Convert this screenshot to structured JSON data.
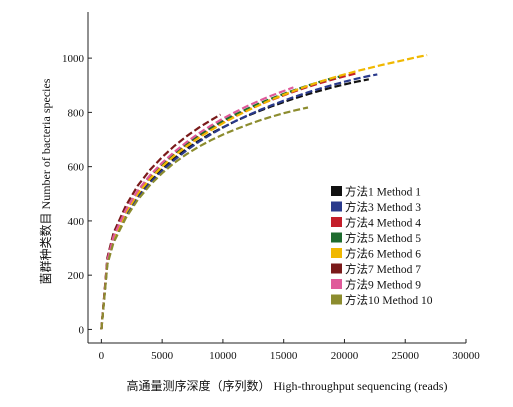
{
  "chart_data": {
    "type": "line",
    "title": "",
    "xlabel": "高通量测序深度（序列数） High-throughput sequencing (reads)",
    "ylabel": "菌群种类数目 Number of bacteria species",
    "xlim": [
      -1100,
      30000
    ],
    "ylim": [
      -50,
      1170
    ],
    "xticks": [
      0,
      5000,
      10000,
      15000,
      20000,
      25000,
      30000
    ],
    "yticks": [
      0,
      200,
      400,
      600,
      800,
      1000
    ],
    "grid": false,
    "legend_position": "right",
    "line_style": "dashed",
    "series": [
      {
        "name": "方法1 Method 1",
        "color": "#111111",
        "points": [
          [
            0,
            0
          ],
          [
            500,
            250
          ],
          [
            1000,
            330
          ],
          [
            2000,
            420
          ],
          [
            3000,
            490
          ],
          [
            4000,
            545
          ],
          [
            5000,
            590
          ],
          [
            6000,
            630
          ],
          [
            7000,
            665
          ],
          [
            8000,
            695
          ],
          [
            9000,
            722
          ],
          [
            10000,
            745
          ],
          [
            11000,
            767
          ],
          [
            12000,
            787
          ],
          [
            13000,
            805
          ],
          [
            14000,
            822
          ],
          [
            15000,
            838
          ],
          [
            16000,
            853
          ],
          [
            17000,
            867
          ],
          [
            18000,
            880
          ],
          [
            19000,
            892
          ],
          [
            20000,
            903
          ],
          [
            21000,
            913
          ],
          [
            22000,
            922
          ]
        ]
      },
      {
        "name": "方法3 Method 3",
        "color": "#2a3a8c",
        "points": [
          [
            0,
            0
          ],
          [
            500,
            245
          ],
          [
            1000,
            325
          ],
          [
            2000,
            415
          ],
          [
            3000,
            485
          ],
          [
            4000,
            540
          ],
          [
            5000,
            585
          ],
          [
            6000,
            625
          ],
          [
            7000,
            660
          ],
          [
            8000,
            691
          ],
          [
            9000,
            719
          ],
          [
            10000,
            744
          ],
          [
            11000,
            767
          ],
          [
            12000,
            788
          ],
          [
            13000,
            808
          ],
          [
            14000,
            826
          ],
          [
            15000,
            843
          ],
          [
            16000,
            859
          ],
          [
            17000,
            874
          ],
          [
            18000,
            888
          ],
          [
            19000,
            901
          ],
          [
            20000,
            913
          ],
          [
            21000,
            924
          ],
          [
            22000,
            934
          ],
          [
            22700,
            940
          ]
        ]
      },
      {
        "name": "方法4 Method 4",
        "color": "#c41e2a",
        "points": [
          [
            0,
            0
          ],
          [
            500,
            255
          ],
          [
            1000,
            340
          ],
          [
            2000,
            435
          ],
          [
            3000,
            505
          ],
          [
            4000,
            560
          ],
          [
            5000,
            605
          ],
          [
            6000,
            645
          ],
          [
            7000,
            680
          ],
          [
            8000,
            711
          ],
          [
            9000,
            739
          ],
          [
            10000,
            764
          ],
          [
            11000,
            787
          ],
          [
            12000,
            808
          ],
          [
            13000,
            828
          ],
          [
            14000,
            846
          ],
          [
            15000,
            863
          ],
          [
            16000,
            879
          ],
          [
            17000,
            894
          ],
          [
            18000,
            908
          ],
          [
            19000,
            921
          ],
          [
            20000,
            933
          ],
          [
            21000,
            944
          ]
        ]
      },
      {
        "name": "方法5 Method 5",
        "color": "#1e6b2e",
        "points": [
          [
            0,
            0
          ],
          [
            500,
            258
          ],
          [
            1000,
            345
          ],
          [
            2000,
            440
          ],
          [
            3000,
            510
          ],
          [
            4000,
            565
          ],
          [
            5000,
            610
          ],
          [
            6000,
            650
          ],
          [
            7000,
            685
          ],
          [
            8000,
            716
          ],
          [
            9000,
            744
          ],
          [
            10000,
            769
          ],
          [
            11000,
            792
          ],
          [
            12000,
            813
          ],
          [
            13000,
            833
          ],
          [
            14000,
            851
          ],
          [
            15000,
            868
          ],
          [
            16000,
            884
          ],
          [
            17000,
            899
          ],
          [
            18000,
            913
          ],
          [
            19000,
            926
          ],
          [
            19600,
            932
          ]
        ]
      },
      {
        "name": "方法6 Method 6",
        "color": "#f0b800",
        "points": [
          [
            0,
            0
          ],
          [
            500,
            250
          ],
          [
            1000,
            335
          ],
          [
            2000,
            430
          ],
          [
            3000,
            500
          ],
          [
            4000,
            555
          ],
          [
            5000,
            600
          ],
          [
            6000,
            640
          ],
          [
            7000,
            675
          ],
          [
            8000,
            706
          ],
          [
            9000,
            734
          ],
          [
            10000,
            760
          ],
          [
            11000,
            784
          ],
          [
            12000,
            806
          ],
          [
            13000,
            827
          ],
          [
            14000,
            847
          ],
          [
            15000,
            865
          ],
          [
            16000,
            882
          ],
          [
            17000,
            898
          ],
          [
            18000,
            913
          ],
          [
            19000,
            927
          ],
          [
            20000,
            940
          ],
          [
            21000,
            952
          ],
          [
            22000,
            963
          ],
          [
            23000,
            974
          ],
          [
            24000,
            984
          ],
          [
            25000,
            994
          ],
          [
            26000,
            1004
          ],
          [
            26800,
            1011
          ]
        ]
      },
      {
        "name": "方法7 Method 7",
        "color": "#7a1a1a",
        "points": [
          [
            0,
            0
          ],
          [
            500,
            265
          ],
          [
            1000,
            355
          ],
          [
            2000,
            455
          ],
          [
            3000,
            530
          ],
          [
            4000,
            588
          ],
          [
            5000,
            635
          ],
          [
            6000,
            676
          ],
          [
            7000,
            712
          ],
          [
            8000,
            743
          ],
          [
            9000,
            771
          ],
          [
            9800,
            792
          ]
        ]
      },
      {
        "name": "方法9 Method 9",
        "color": "#e05a9a",
        "points": [
          [
            0,
            0
          ],
          [
            500,
            255
          ],
          [
            1000,
            342
          ],
          [
            2000,
            440
          ],
          [
            3000,
            512
          ],
          [
            4000,
            568
          ],
          [
            5000,
            614
          ],
          [
            6000,
            654
          ],
          [
            7000,
            690
          ],
          [
            8000,
            722
          ],
          [
            9000,
            751
          ],
          [
            10000,
            777
          ],
          [
            11000,
            801
          ],
          [
            12000,
            823
          ],
          [
            13000,
            843
          ],
          [
            14000,
            862
          ],
          [
            15000,
            879
          ],
          [
            15800,
            892
          ]
        ]
      },
      {
        "name": "方法10 Method 10",
        "color": "#8c8c2e",
        "points": [
          [
            0,
            0
          ],
          [
            500,
            240
          ],
          [
            1000,
            320
          ],
          [
            2000,
            410
          ],
          [
            3000,
            478
          ],
          [
            4000,
            532
          ],
          [
            5000,
            576
          ],
          [
            6000,
            614
          ],
          [
            7000,
            646
          ],
          [
            8000,
            673
          ],
          [
            9000,
            697
          ],
          [
            10000,
            718
          ],
          [
            11000,
            737
          ],
          [
            12000,
            754
          ],
          [
            13000,
            770
          ],
          [
            14000,
            784
          ],
          [
            15000,
            797
          ],
          [
            16000,
            808
          ],
          [
            17000,
            818
          ]
        ]
      }
    ]
  }
}
